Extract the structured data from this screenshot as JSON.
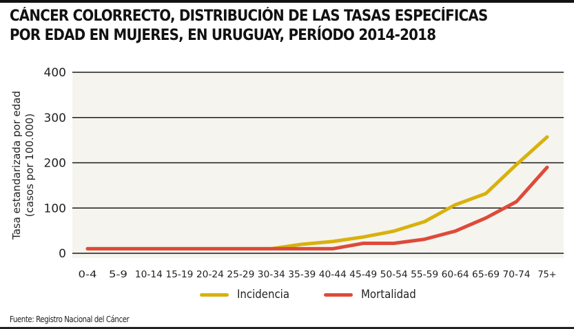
{
  "chart_data": {
    "type": "line",
    "title": [
      "CÁNCER COLORRECTO, DISTRIBUCIÓN DE LAS TASAS ESPECÍFICAS",
      "POR EDAD EN MUJERES, EN URUGUAY, PERÍODO 2014-2018"
    ],
    "xlabel": "",
    "ylabel": [
      "Tasa estandarizada por edad",
      "(casos por 100.000)"
    ],
    "ylim": [
      0,
      400
    ],
    "yticks": [
      0,
      100,
      200,
      300,
      400
    ],
    "grid": true,
    "categories": [
      "0-4",
      "5-9",
      "10-14",
      "15-19",
      "20-24",
      "25-29",
      "30-34",
      "35-39",
      "40-44",
      "45-49",
      "50-54",
      "55-59",
      "60-64",
      "65-69",
      "70-74",
      "75+"
    ],
    "series": [
      {
        "name": "Incidencia",
        "color": "#d8b10c",
        "values": [
          10,
          10,
          10,
          10,
          10,
          10,
          10,
          20,
          26,
          36,
          49,
          70,
          107,
          132,
          196,
          257
        ]
      },
      {
        "name": "Mortalidad",
        "color": "#de4a3a",
        "values": [
          10,
          10,
          10,
          10,
          10,
          10,
          10,
          10,
          10,
          22,
          22,
          31,
          49,
          78,
          114,
          190
        ]
      }
    ],
    "legend_position": "bottom-center",
    "plot_background": "#f5f4ee"
  },
  "source": "Fuente: Registro Nacional del Cáncer"
}
